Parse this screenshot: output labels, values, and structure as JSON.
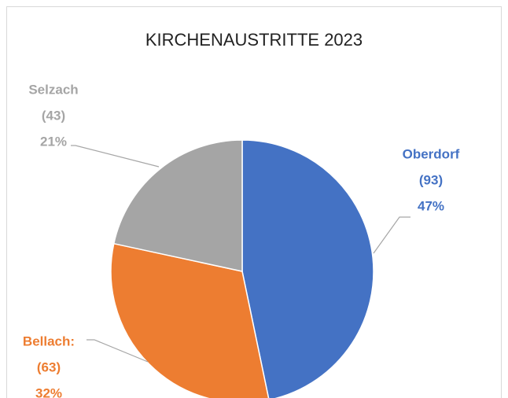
{
  "chart_data": {
    "type": "pie",
    "title": "KIRCHENAUSTRITTE 2023",
    "categories": [
      "Oberdorf",
      "Bellach:",
      "Selzach"
    ],
    "values": [
      93,
      63,
      43
    ],
    "value_labels": [
      "(93)",
      "(63)",
      "(43)"
    ],
    "percent_labels": [
      "47%",
      "32%",
      "21%"
    ],
    "colors": [
      "#4472c4",
      "#ed7d31",
      "#a5a5a5"
    ]
  }
}
